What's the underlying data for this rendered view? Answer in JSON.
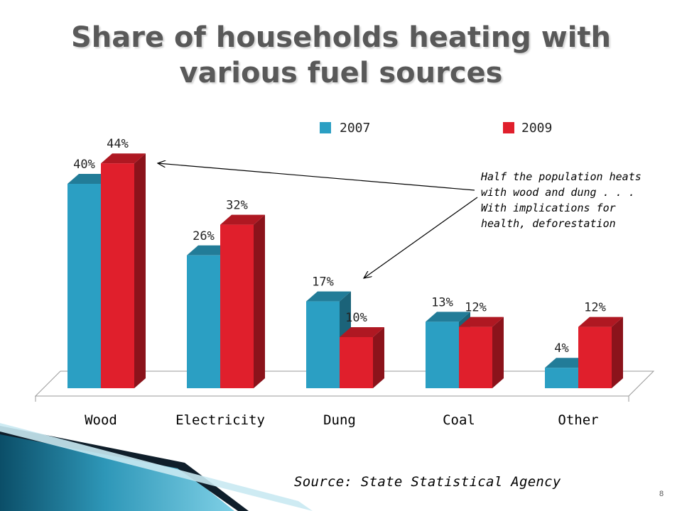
{
  "slide": {
    "title": "Share of households heating with various fuel sources",
    "source": "Source: State Statistical Agency",
    "page_number": "8",
    "annotation": "Half the population heats\nwith wood and dung . . .\nWith implications for\nhealth, deforestation"
  },
  "chart_data": {
    "type": "bar",
    "title": "Share of households heating with various fuel sources",
    "xlabel": "",
    "ylabel": "",
    "categories": [
      "Wood",
      "Electricity",
      "Dung",
      "Coal",
      "Other"
    ],
    "series": [
      {
        "name": "2007",
        "values": [
          40,
          26,
          17,
          13,
          4
        ],
        "labels": [
          "40%",
          "26%",
          "17%",
          "13%",
          "4%"
        ],
        "color": "#2B9FC3"
      },
      {
        "name": "2009",
        "values": [
          44,
          32,
          10,
          12,
          12
        ],
        "labels": [
          "44%",
          "32%",
          "10%",
          "12%",
          "12%"
        ],
        "color": "#E01F2C"
      }
    ],
    "ylim": [
      0,
      50
    ],
    "grid": false,
    "legend": "top-right",
    "three_d": true
  }
}
